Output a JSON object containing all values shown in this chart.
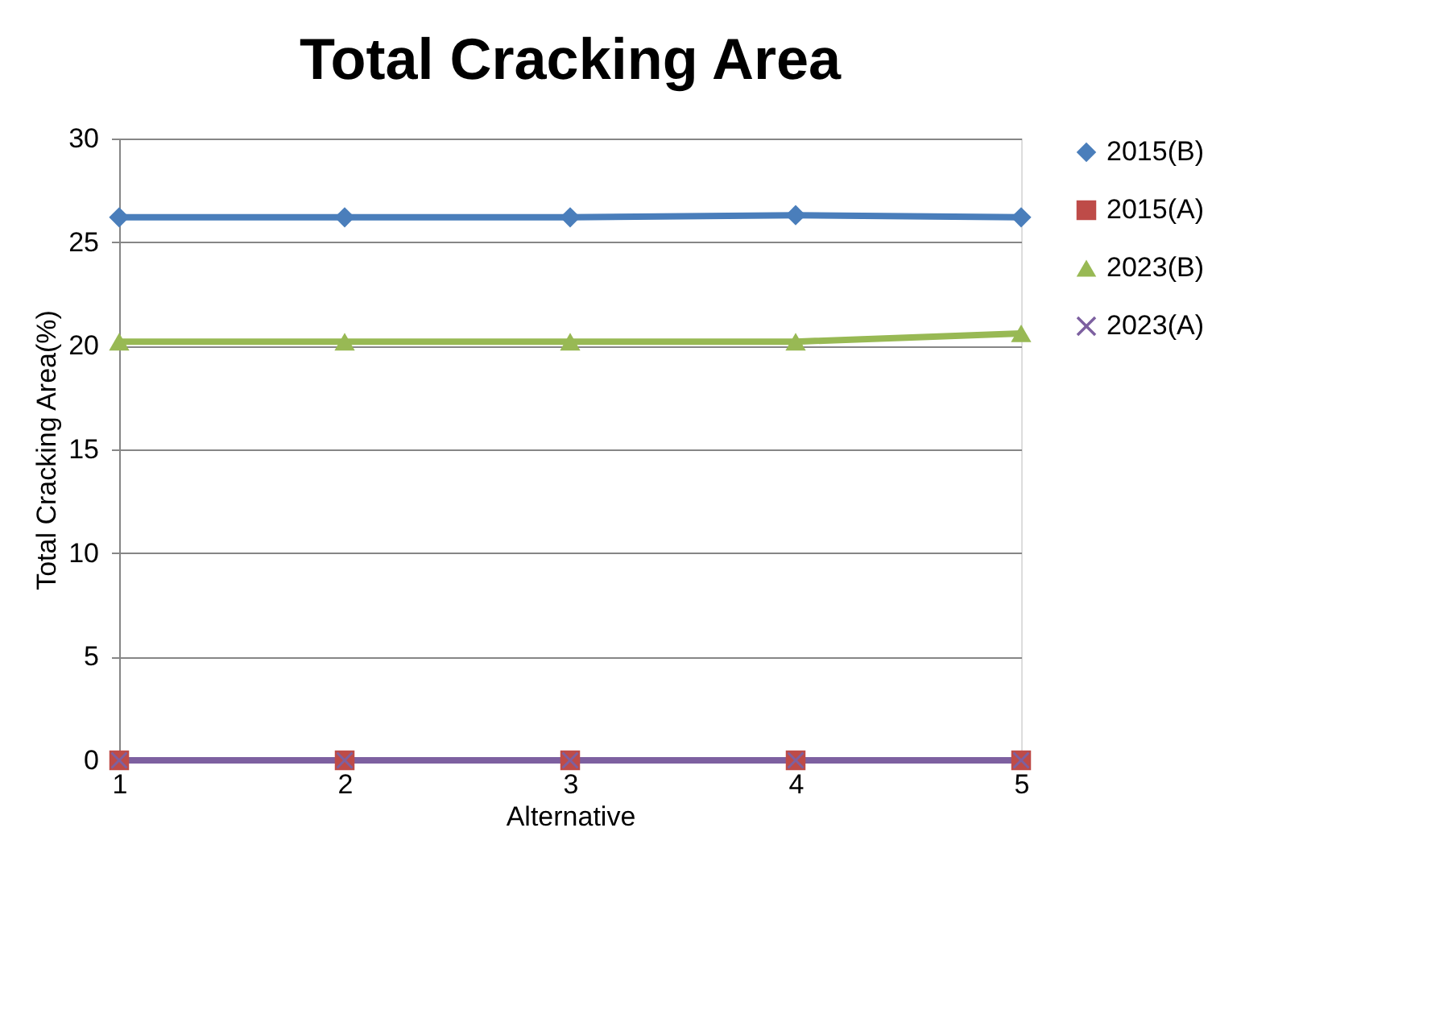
{
  "chart_data": {
    "type": "line",
    "title": "Total Cracking Area",
    "xlabel": "Alternative",
    "ylabel": "Total Cracking Area(%)",
    "x": [
      1,
      2,
      3,
      4,
      5
    ],
    "xlim": [
      1,
      5
    ],
    "xticks": [
      1,
      2,
      3,
      4,
      5
    ],
    "ylim": [
      0,
      30
    ],
    "yticks": [
      0,
      5,
      10,
      15,
      20,
      25,
      30
    ],
    "grid": "y",
    "legend": "right",
    "series": [
      {
        "name": "2015(B)",
        "color": "#4a7ebb",
        "marker": "diamond",
        "values": [
          26.2,
          26.2,
          26.2,
          26.3,
          26.2
        ]
      },
      {
        "name": "2015(A)",
        "color": "#be4b48",
        "marker": "square",
        "values": [
          0,
          0,
          0,
          0,
          0
        ]
      },
      {
        "name": "2023(B)",
        "color": "#98b954",
        "marker": "triangle",
        "values": [
          20.2,
          20.2,
          20.2,
          20.2,
          20.6
        ]
      },
      {
        "name": "2023(A)",
        "color": "#7d60a0",
        "marker": "cross",
        "values": [
          0,
          0,
          0,
          0,
          0
        ]
      }
    ]
  }
}
